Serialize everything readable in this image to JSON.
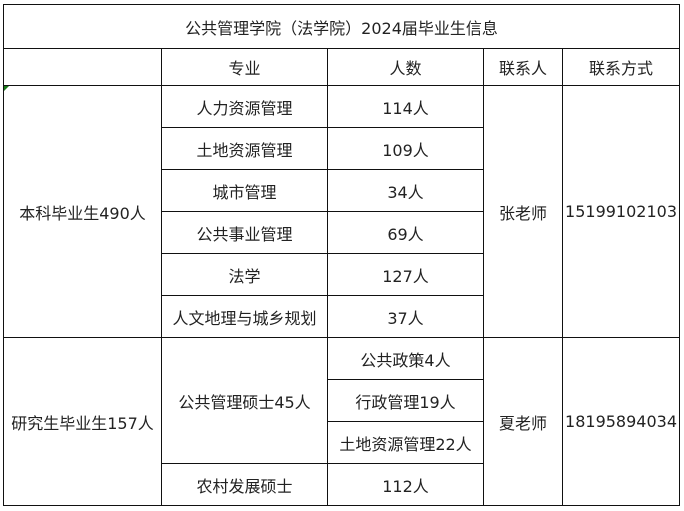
{
  "title": "公共管理学院（法学院）2024届毕业生信息",
  "headers": {
    "blank": "",
    "major": "专业",
    "count": "人数",
    "contact": "联系人",
    "phone": "联系方式"
  },
  "undergrad": {
    "label": "本科毕业生490人",
    "contact": "张老师",
    "phone": "15199102103",
    "rows": [
      {
        "major": "人力资源管理",
        "count": "114人"
      },
      {
        "major": "土地资源管理",
        "count": "109人"
      },
      {
        "major": "城市管理",
        "count": "34人"
      },
      {
        "major": "公共事业管理",
        "count": "69人"
      },
      {
        "major": "法学",
        "count": "127人"
      },
      {
        "major": "人文地理与城乡规划",
        "count": "37人"
      }
    ]
  },
  "graduate": {
    "label": "研究生毕业生157人",
    "contact": "夏老师",
    "phone": "18195894034",
    "mpa": {
      "major": "公共管理硕士45人",
      "subs": [
        "公共政策4人",
        "行政管理19人",
        "土地资源管理22人"
      ]
    },
    "rural": {
      "major": "农村发展硕士",
      "count": "112人"
    }
  }
}
